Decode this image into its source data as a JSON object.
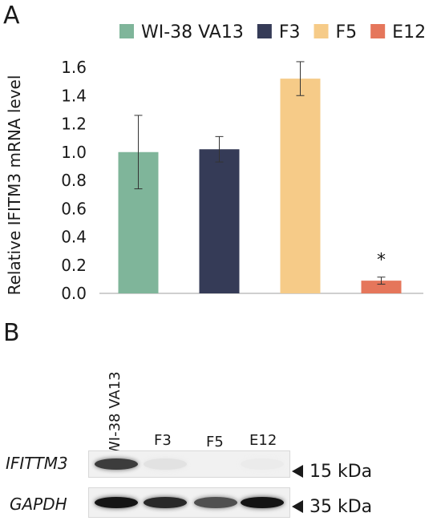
{
  "panels": {
    "a": "A",
    "b": "B"
  },
  "chart_data": {
    "type": "bar",
    "categories": [
      "WI-38 VA13",
      "F3",
      "F5",
      "E12"
    ],
    "series": [
      {
        "name": "WI-38 VA13",
        "value": 1.0,
        "error": 0.26,
        "color": "#7fb59a"
      },
      {
        "name": "F3",
        "value": 1.02,
        "error": 0.09,
        "color": "#353b57"
      },
      {
        "name": "F5",
        "value": 1.52,
        "error": 0.12,
        "color": "#f6cb88"
      },
      {
        "name": "E12",
        "value": 0.09,
        "error": 0.025,
        "color": "#e5765b"
      }
    ],
    "ylabel": "Relative IFITM3 mRNA level",
    "ylim": [
      0,
      1.6
    ],
    "yticks": [
      "0.0",
      "0.2",
      "0.4",
      "0.6",
      "0.8",
      "1.0",
      "1.2",
      "1.4",
      "1.6"
    ],
    "grid": false,
    "legend": "top",
    "annotation": {
      "text": "*",
      "category": "E12"
    }
  },
  "blot": {
    "lanes": [
      "WI-38 VA13",
      "F3",
      "F5",
      "E12"
    ],
    "rows": [
      {
        "gene": "IFITTM3",
        "kda": "15 kDa",
        "intensities": [
          0.9,
          0.15,
          0.0,
          0.02
        ]
      },
      {
        "gene": "GAPDH",
        "kda": "35 kDa",
        "intensities": [
          1.0,
          0.95,
          0.85,
          1.0
        ]
      }
    ]
  }
}
